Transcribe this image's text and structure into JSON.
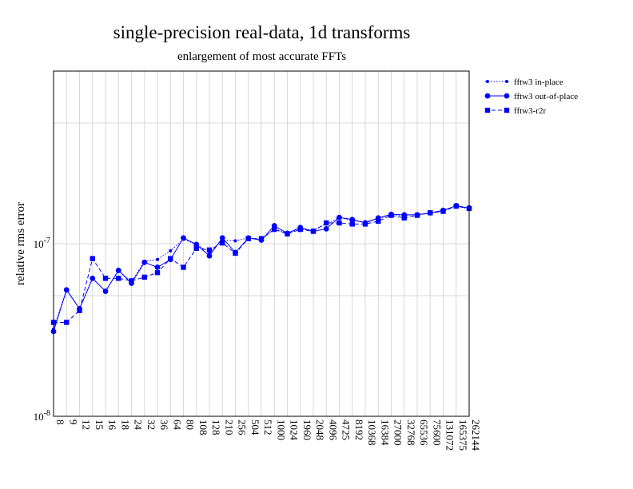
{
  "chart_data": {
    "type": "line",
    "title": "single-precision real-data, 1d transforms",
    "subtitle": "enlargement of most accurate FFTs",
    "xlabel": "",
    "ylabel": "relative rms error",
    "yscale": "log",
    "ylim": [
      1e-08,
      1e-06
    ],
    "y_ticks": [
      {
        "value": 1e-08,
        "base": "10",
        "exp": "-8"
      },
      {
        "value": 1e-07,
        "base": "10",
        "exp": "-7"
      }
    ],
    "categories": [
      "8",
      "9",
      "12",
      "15",
      "16",
      "18",
      "24",
      "32",
      "36",
      "64",
      "80",
      "108",
      "128",
      "210",
      "256",
      "504",
      "512",
      "1000",
      "1024",
      "1960",
      "2048",
      "4096",
      "4725",
      "8192",
      "10368",
      "16384",
      "27000",
      "32768",
      "65536",
      "75600",
      "131072",
      "165375",
      "262144"
    ],
    "grid": true,
    "legend_position": "right",
    "color": "#0000ff",
    "series": [
      {
        "name": "fftw3 in-place",
        "style": "dotted",
        "marker": "small-circle",
        "values": [
          3.2e-08,
          5.4e-08,
          4.2e-08,
          6.3e-08,
          5.3e-08,
          7e-08,
          6e-08,
          7.9e-08,
          8.1e-08,
          9.1e-08,
          1.06e-07,
          9.9e-08,
          8.9e-08,
          1.05e-07,
          1.04e-07,
          1.08e-07,
          1.05e-07,
          1.22e-07,
          1.15e-07,
          1.21e-07,
          1.2e-07,
          1.3e-07,
          1.42e-07,
          1.36e-07,
          1.34e-07,
          1.4e-07,
          1.47e-07,
          1.46e-07,
          1.48e-07,
          1.5e-07,
          1.55e-07,
          1.66e-07,
          1.59e-07
        ]
      },
      {
        "name": "fftw3 out-of-place",
        "style": "solid",
        "marker": "circle",
        "values": [
          3.1e-08,
          5.4e-08,
          4.2e-08,
          6.3e-08,
          5.3e-08,
          7e-08,
          5.9e-08,
          7.8e-08,
          7.3e-08,
          8.1e-08,
          1.08e-07,
          9.9e-08,
          8.5e-08,
          1.08e-07,
          8.9e-08,
          1.08e-07,
          1.05e-07,
          1.27e-07,
          1.15e-07,
          1.24e-07,
          1.18e-07,
          1.22e-07,
          1.42e-07,
          1.38e-07,
          1.32e-07,
          1.41e-07,
          1.48e-07,
          1.47e-07,
          1.47e-07,
          1.51e-07,
          1.56e-07,
          1.66e-07,
          1.61e-07
        ]
      },
      {
        "name": "fftw3-r2r",
        "style": "dashed",
        "marker": "square",
        "values": [
          3.5e-08,
          3.5e-08,
          4.1e-08,
          8.2e-08,
          6.3e-08,
          6.3e-08,
          6.1e-08,
          6.4e-08,
          6.8e-08,
          8.2e-08,
          7.3e-08,
          9.4e-08,
          9.2e-08,
          1.01e-07,
          8.8e-08,
          1.07e-07,
          1.07e-07,
          1.21e-07,
          1.14e-07,
          1.21e-07,
          1.18e-07,
          1.32e-07,
          1.32e-07,
          1.3e-07,
          1.3e-07,
          1.35e-07,
          1.46e-07,
          1.41e-07,
          1.46e-07,
          1.51e-07,
          1.54e-07,
          1.65e-07,
          1.6e-07
        ]
      }
    ]
  }
}
